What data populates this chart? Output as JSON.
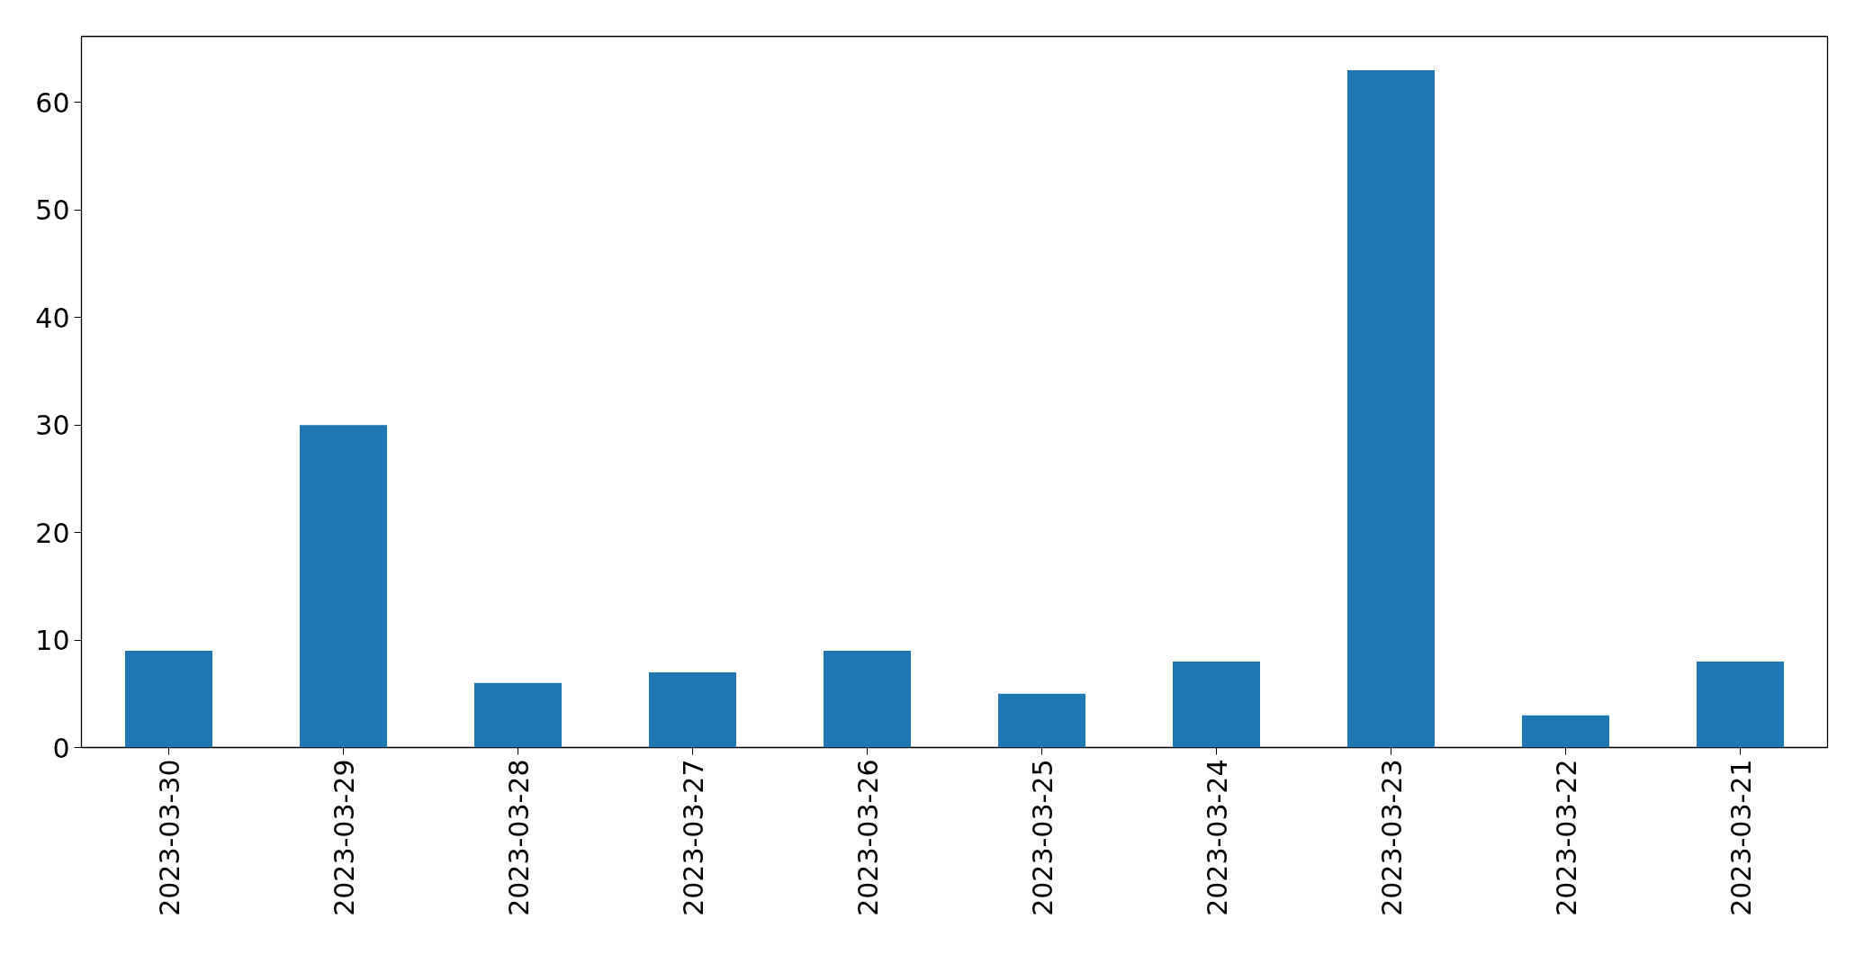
{
  "chart_data": {
    "type": "bar",
    "categories": [
      "2023-03-30",
      "2023-03-29",
      "2023-03-28",
      "2023-03-27",
      "2023-03-26",
      "2023-03-25",
      "2023-03-24",
      "2023-03-23",
      "2023-03-22",
      "2023-03-21"
    ],
    "values": [
      9,
      30,
      6,
      7,
      9,
      5,
      8,
      63,
      3,
      8
    ],
    "color": "#1f77b4",
    "ylim": [
      0,
      66.15
    ],
    "yticks": [
      0,
      10,
      20,
      30,
      40,
      50,
      60
    ],
    "grid": false
  }
}
